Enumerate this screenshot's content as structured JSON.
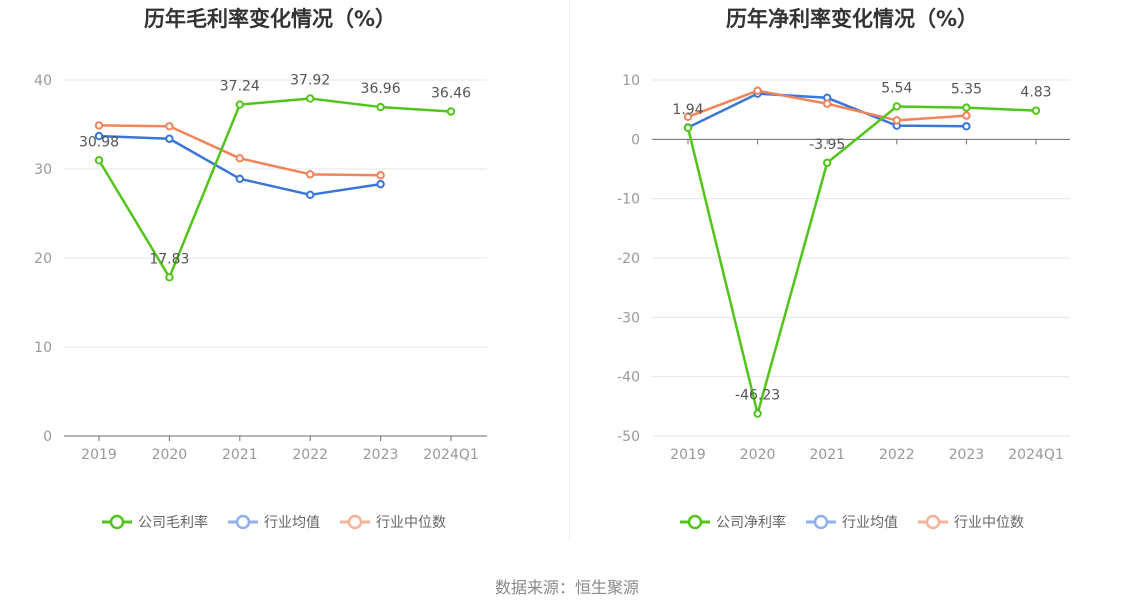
{
  "chart_data": [
    {
      "type": "line",
      "title": "历年毛利率变化情况（%）",
      "categories": [
        "2019",
        "2020",
        "2021",
        "2022",
        "2023",
        "2024Q1"
      ],
      "yticks": [
        "0",
        "10",
        "20",
        "30",
        "40"
      ],
      "ylim": [
        0,
        40
      ],
      "grid": true,
      "legend_position": "bottom-center",
      "series": [
        {
          "name": "公司毛利率",
          "color": "#52c41a",
          "values": [
            30.98,
            17.83,
            37.24,
            37.92,
            36.96,
            36.46
          ],
          "labels": [
            "30.98",
            "17.83",
            "37.24",
            "37.92",
            "36.96",
            "36.46"
          ]
        },
        {
          "name": "行业均值",
          "color": "#3a75d9",
          "values": [
            33.7,
            33.4,
            28.9,
            27.1,
            28.3,
            null
          ]
        },
        {
          "name": "行业中位数",
          "color": "#f0845a",
          "values": [
            34.9,
            34.8,
            31.2,
            29.4,
            29.3,
            null
          ]
        }
      ]
    },
    {
      "type": "line",
      "title": "历年净利率变化情况（%）",
      "categories": [
        "2019",
        "2020",
        "2021",
        "2022",
        "2023",
        "2024Q1"
      ],
      "yticks": [
        "-50",
        "-40",
        "-30",
        "-20",
        "-10",
        "0",
        "10"
      ],
      "ylim": [
        -50,
        10
      ],
      "grid": true,
      "legend_position": "bottom-center",
      "series": [
        {
          "name": "公司净利率",
          "color": "#52c41a",
          "values": [
            1.94,
            -46.23,
            -3.95,
            5.54,
            5.35,
            4.83
          ],
          "labels": [
            "1.94",
            "-46.23",
            "-3.95",
            "5.54",
            "5.35",
            "4.83"
          ]
        },
        {
          "name": "行业均值",
          "color": "#3a75d9",
          "values": [
            2.0,
            7.7,
            7.0,
            2.3,
            2.2,
            null
          ]
        },
        {
          "name": "行业中位数",
          "color": "#f0845a",
          "values": [
            3.8,
            8.2,
            6.0,
            3.2,
            4.0,
            null
          ]
        }
      ]
    }
  ],
  "source": "数据来源：恒生聚源"
}
